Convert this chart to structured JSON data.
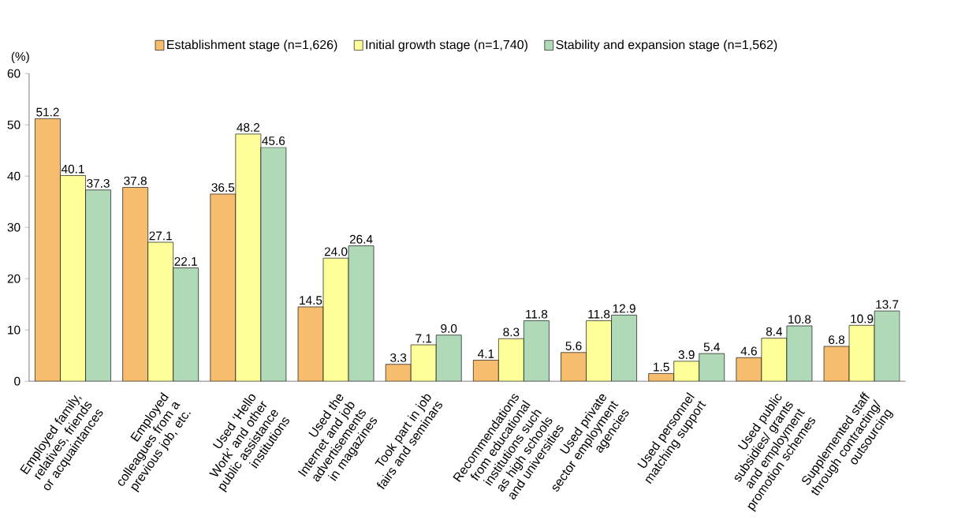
{
  "chart_data": {
    "type": "bar",
    "ylabel": "(%)",
    "categories": [
      "Employed family, relatives, friends or acquaintances",
      "Employed colleagues from a previous job, etc.",
      "Used ‘Hello Work’ and other public assistance institutions",
      "Used the Internet and job advertisements in magazines",
      "Took part in job fairs and seminars",
      "Recommendations from educational institutions such as high schools and universities",
      "Used private sector employment agencies",
      "Used personnel matching support",
      "Used public subsidies/ grants and employment promotion schemes",
      "Supplemented staff through contracting/ outsourcing"
    ],
    "series": [
      {
        "name": "Establishment stage (n=1,626)",
        "color": "#f7bd6e",
        "values": [
          51.2,
          37.8,
          36.5,
          14.5,
          3.3,
          4.1,
          5.6,
          1.5,
          4.6,
          6.8
        ],
        "value_labels": [
          "51.2",
          "37.8",
          "36.5",
          "14.5",
          "3.3",
          "4.1",
          "5.6",
          "1.5",
          "4.6",
          "6.8"
        ]
      },
      {
        "name": "Initial growth stage (n=1,740)",
        "color": "#ffff99",
        "values": [
          40.1,
          27.1,
          48.2,
          24.0,
          7.1,
          8.3,
          11.8,
          3.9,
          8.4,
          10.9
        ],
        "value_labels": [
          "40.1",
          "27.1",
          "48.2",
          "24.0",
          "7.1",
          "8.3",
          "11.8",
          "3.9",
          "8.4",
          "10.9"
        ]
      },
      {
        "name": "Stability and expansion stage (n=1,562)",
        "color": "#b0dab7",
        "values": [
          37.3,
          22.1,
          45.6,
          26.4,
          9.0,
          11.8,
          12.9,
          5.4,
          10.8,
          13.7
        ],
        "value_labels": [
          "37.3",
          "22.1",
          "45.6",
          "26.4",
          "9.0",
          "11.8",
          "12.9",
          "5.4",
          "10.8",
          "13.7"
        ]
      }
    ],
    "ylim": [
      0,
      60
    ],
    "yticks": [
      0,
      10,
      20,
      30,
      40,
      50,
      60
    ],
    "legend": "top",
    "grid": false
  }
}
